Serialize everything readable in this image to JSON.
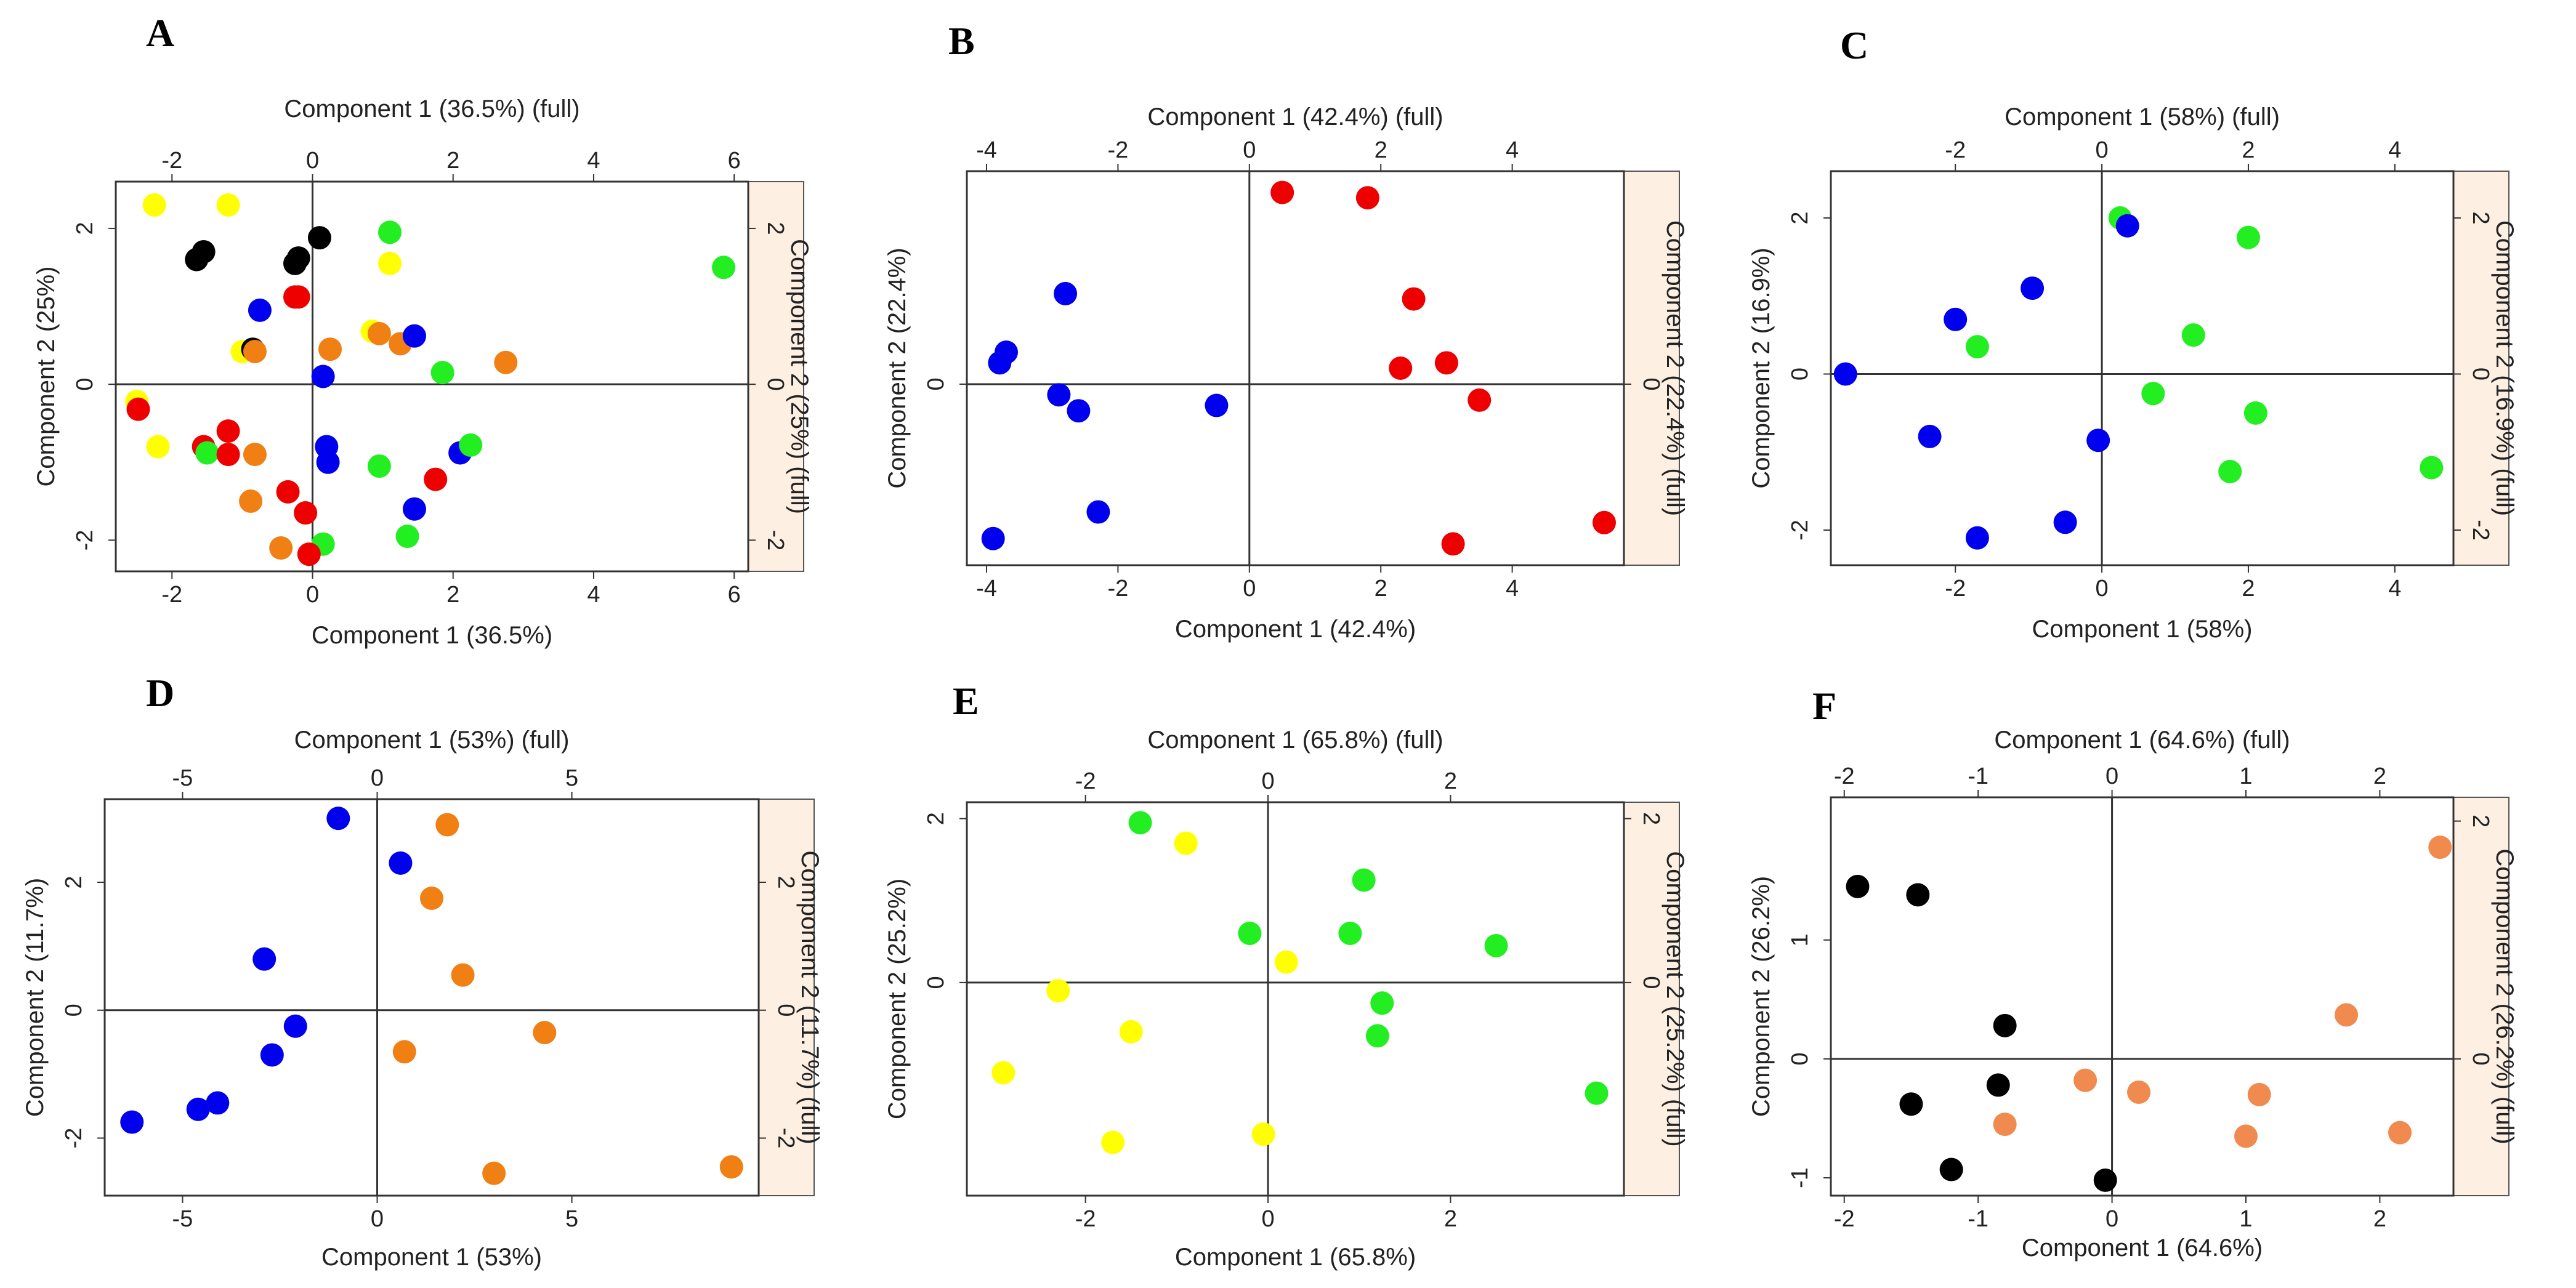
{
  "chart_data": [
    {
      "type": "scatter",
      "panel": "A",
      "xlabel": "Component 1 (36.5%)",
      "xlabel_top": "Component 1 (36.5%)   (full)",
      "ylabel": "Component 2 (25%)",
      "ylabel_right": "Component 2 (25%) (full)",
      "xlim": [
        -2.8,
        6.2
      ],
      "ylim": [
        -2.4,
        2.6
      ],
      "x_ticks": [
        -2,
        0,
        2,
        4,
        6
      ],
      "y_ticks": [
        -2,
        0,
        2
      ],
      "points": [
        {
          "x": -2.25,
          "y": 2.3,
          "color": "yellow"
        },
        {
          "x": -1.2,
          "y": 2.3,
          "color": "yellow"
        },
        {
          "x": -1.65,
          "y": 1.6,
          "color": "black"
        },
        {
          "x": -1.55,
          "y": 1.7,
          "color": "black"
        },
        {
          "x": -0.25,
          "y": 1.55,
          "color": "black"
        },
        {
          "x": -0.2,
          "y": 1.62,
          "color": "black"
        },
        {
          "x": 0.1,
          "y": 1.88,
          "color": "black"
        },
        {
          "x": 1.1,
          "y": 1.95,
          "color": "green"
        },
        {
          "x": 1.1,
          "y": 1.55,
          "color": "yellow"
        },
        {
          "x": 5.85,
          "y": 1.5,
          "color": "green"
        },
        {
          "x": -0.75,
          "y": 0.95,
          "color": "blue"
        },
        {
          "x": -0.25,
          "y": 1.12,
          "color": "red"
        },
        {
          "x": -0.2,
          "y": 1.12,
          "color": "red"
        },
        {
          "x": -1.0,
          "y": 0.42,
          "color": "yellow"
        },
        {
          "x": -0.85,
          "y": 0.45,
          "color": "black"
        },
        {
          "x": -0.82,
          "y": 0.42,
          "color": "orange"
        },
        {
          "x": 0.25,
          "y": 0.45,
          "color": "orange"
        },
        {
          "x": 0.85,
          "y": 0.68,
          "color": "yellow"
        },
        {
          "x": 0.95,
          "y": 0.65,
          "color": "orange"
        },
        {
          "x": 1.25,
          "y": 0.52,
          "color": "orange"
        },
        {
          "x": 1.45,
          "y": 0.62,
          "color": "blue"
        },
        {
          "x": 1.85,
          "y": 0.15,
          "color": "green"
        },
        {
          "x": 2.75,
          "y": 0.28,
          "color": "orange"
        },
        {
          "x": 0.15,
          "y": 0.1,
          "color": "blue"
        },
        {
          "x": -2.5,
          "y": -0.22,
          "color": "yellow"
        },
        {
          "x": -2.48,
          "y": -0.32,
          "color": "red"
        },
        {
          "x": -2.2,
          "y": -0.8,
          "color": "yellow"
        },
        {
          "x": -1.55,
          "y": -0.8,
          "color": "red"
        },
        {
          "x": -1.5,
          "y": -0.88,
          "color": "green"
        },
        {
          "x": -1.2,
          "y": -0.6,
          "color": "red"
        },
        {
          "x": -1.2,
          "y": -0.9,
          "color": "red"
        },
        {
          "x": -0.82,
          "y": -0.9,
          "color": "orange"
        },
        {
          "x": -0.88,
          "y": -1.5,
          "color": "orange"
        },
        {
          "x": -0.35,
          "y": -1.38,
          "color": "red"
        },
        {
          "x": -0.1,
          "y": -1.65,
          "color": "red"
        },
        {
          "x": 0.2,
          "y": -0.8,
          "color": "blue"
        },
        {
          "x": 0.22,
          "y": -1.0,
          "color": "blue"
        },
        {
          "x": 0.95,
          "y": -1.05,
          "color": "green"
        },
        {
          "x": 1.45,
          "y": -1.6,
          "color": "blue"
        },
        {
          "x": 1.75,
          "y": -1.22,
          "color": "red"
        },
        {
          "x": 2.1,
          "y": -0.88,
          "color": "blue"
        },
        {
          "x": 2.25,
          "y": -0.78,
          "color": "green"
        },
        {
          "x": 1.35,
          "y": -1.95,
          "color": "green"
        },
        {
          "x": -0.45,
          "y": -2.1,
          "color": "orange"
        },
        {
          "x": 0.15,
          "y": -2.05,
          "color": "green"
        },
        {
          "x": -0.05,
          "y": -2.18,
          "color": "red"
        }
      ]
    },
    {
      "type": "scatter",
      "panel": "B",
      "xlabel": "Component 1 (42.4%)",
      "xlabel_top": "Component 1 (42.4%) (full)",
      "ylabel": "Component 2 (22.4%)",
      "ylabel_right": "Component 2 (22.4%) (full)",
      "xlim": [
        -4.3,
        5.7
      ],
      "ylim": [
        -3.4,
        4.0
      ],
      "x_ticks": [
        -4,
        -2,
        0,
        2,
        4
      ],
      "y_ticks": [
        0
      ],
      "points": [
        {
          "x": 0.5,
          "y": 3.6,
          "color": "red"
        },
        {
          "x": 1.8,
          "y": 3.5,
          "color": "red"
        },
        {
          "x": 2.5,
          "y": 1.6,
          "color": "red"
        },
        {
          "x": 2.3,
          "y": 0.3,
          "color": "red"
        },
        {
          "x": 3.0,
          "y": 0.4,
          "color": "red"
        },
        {
          "x": 3.5,
          "y": -0.3,
          "color": "red"
        },
        {
          "x": 5.4,
          "y": -2.6,
          "color": "red"
        },
        {
          "x": 3.1,
          "y": -3.0,
          "color": "red"
        },
        {
          "x": -2.8,
          "y": 1.7,
          "color": "blue"
        },
        {
          "x": -3.7,
          "y": 0.6,
          "color": "blue"
        },
        {
          "x": -3.8,
          "y": 0.4,
          "color": "blue"
        },
        {
          "x": -2.9,
          "y": -0.2,
          "color": "blue"
        },
        {
          "x": -2.6,
          "y": -0.5,
          "color": "blue"
        },
        {
          "x": -0.5,
          "y": -0.4,
          "color": "blue"
        },
        {
          "x": -2.3,
          "y": -2.4,
          "color": "blue"
        },
        {
          "x": -3.9,
          "y": -2.9,
          "color": "blue"
        }
      ]
    },
    {
      "type": "scatter",
      "panel": "C",
      "xlabel": "Component 1 (58%)",
      "xlabel_top": "Component 1 (58%) (full)",
      "ylabel": "Component 2 (16.9%)",
      "ylabel_right": "Component 2 (16.9%) (full)",
      "xlim": [
        -3.7,
        4.8
      ],
      "ylim": [
        -2.45,
        2.6
      ],
      "x_ticks": [
        -2,
        0,
        2,
        4
      ],
      "y_ticks": [
        -2,
        0,
        2
      ],
      "points": [
        {
          "x": 0.25,
          "y": 2.0,
          "color": "green"
        },
        {
          "x": 0.35,
          "y": 1.9,
          "color": "blue"
        },
        {
          "x": 2.0,
          "y": 1.75,
          "color": "green"
        },
        {
          "x": -0.95,
          "y": 1.1,
          "color": "blue"
        },
        {
          "x": -2.0,
          "y": 0.7,
          "color": "blue"
        },
        {
          "x": -1.7,
          "y": 0.35,
          "color": "green"
        },
        {
          "x": 1.25,
          "y": 0.5,
          "color": "green"
        },
        {
          "x": -3.5,
          "y": 0.0,
          "color": "blue"
        },
        {
          "x": 0.7,
          "y": -0.25,
          "color": "green"
        },
        {
          "x": 2.1,
          "y": -0.5,
          "color": "green"
        },
        {
          "x": -2.35,
          "y": -0.8,
          "color": "blue"
        },
        {
          "x": -0.05,
          "y": -0.85,
          "color": "blue"
        },
        {
          "x": 1.75,
          "y": -1.25,
          "color": "green"
        },
        {
          "x": 4.5,
          "y": -1.2,
          "color": "green"
        },
        {
          "x": -0.5,
          "y": -1.9,
          "color": "blue"
        },
        {
          "x": -1.7,
          "y": -2.1,
          "color": "blue"
        }
      ]
    },
    {
      "type": "scatter",
      "panel": "D",
      "xlabel": "Component 1 (53%)",
      "xlabel_top": "Component 1 (53%) (full)",
      "ylabel": "Component 2 (11.7%)",
      "ylabel_right": "Component 2 (11.7%) (full)",
      "xlim": [
        -7.0,
        9.8
      ],
      "ylim": [
        -2.9,
        3.3
      ],
      "x_ticks": [
        -5,
        0,
        5
      ],
      "y_ticks": [
        -2,
        0,
        2
      ],
      "points": [
        {
          "x": -1.0,
          "y": 3.0,
          "color": "blue"
        },
        {
          "x": 1.8,
          "y": 2.9,
          "color": "orange"
        },
        {
          "x": 0.6,
          "y": 2.3,
          "color": "blue"
        },
        {
          "x": 1.4,
          "y": 1.75,
          "color": "orange"
        },
        {
          "x": -2.9,
          "y": 0.8,
          "color": "blue"
        },
        {
          "x": 2.2,
          "y": 0.55,
          "color": "orange"
        },
        {
          "x": -2.1,
          "y": -0.25,
          "color": "blue"
        },
        {
          "x": 4.3,
          "y": -0.35,
          "color": "orange"
        },
        {
          "x": -2.7,
          "y": -0.7,
          "color": "blue"
        },
        {
          "x": 0.7,
          "y": -0.65,
          "color": "orange"
        },
        {
          "x": -4.1,
          "y": -1.45,
          "color": "blue"
        },
        {
          "x": -4.6,
          "y": -1.55,
          "color": "blue"
        },
        {
          "x": -6.3,
          "y": -1.75,
          "color": "blue"
        },
        {
          "x": 3.0,
          "y": -2.55,
          "color": "orange"
        },
        {
          "x": 9.1,
          "y": -2.45,
          "color": "orange"
        }
      ]
    },
    {
      "type": "scatter",
      "panel": "E",
      "xlabel": "Component 1 (65.8%)",
      "xlabel_top": "Component 1 (65.8%) (full)",
      "ylabel": "Component 2 (25.2%)",
      "ylabel_right": "Component 2 (25.2%) (full)",
      "xlim": [
        -3.3,
        3.9
      ],
      "ylim": [
        -2.6,
        2.2
      ],
      "x_ticks": [
        -2,
        0,
        2
      ],
      "y_ticks": [
        0,
        2
      ],
      "points": [
        {
          "x": -1.4,
          "y": 1.95,
          "color": "green"
        },
        {
          "x": -0.9,
          "y": 1.7,
          "color": "yellow"
        },
        {
          "x": 1.05,
          "y": 1.25,
          "color": "green"
        },
        {
          "x": -0.2,
          "y": 0.6,
          "color": "green"
        },
        {
          "x": 0.9,
          "y": 0.6,
          "color": "green"
        },
        {
          "x": 2.5,
          "y": 0.45,
          "color": "green"
        },
        {
          "x": 0.2,
          "y": 0.25,
          "color": "yellow"
        },
        {
          "x": -2.3,
          "y": -0.1,
          "color": "yellow"
        },
        {
          "x": 1.25,
          "y": -0.25,
          "color": "green"
        },
        {
          "x": -1.5,
          "y": -0.6,
          "color": "yellow"
        },
        {
          "x": 1.2,
          "y": -0.65,
          "color": "green"
        },
        {
          "x": -2.9,
          "y": -1.1,
          "color": "yellow"
        },
        {
          "x": 3.6,
          "y": -1.35,
          "color": "green"
        },
        {
          "x": -1.7,
          "y": -1.95,
          "color": "yellow"
        },
        {
          "x": -0.05,
          "y": -1.85,
          "color": "yellow"
        }
      ]
    },
    {
      "type": "scatter",
      "panel": "F",
      "xlabel": "Component 1 (64.6%)",
      "xlabel_top": "Component 1 (64.6%) (full)",
      "ylabel": "Component 2 (26.2%)",
      "ylabel_right": "Component 2 (26.2%) (full)",
      "xlim": [
        -2.1,
        2.55
      ],
      "ylim": [
        -1.15,
        2.2
      ],
      "x_ticks": [
        -2,
        -1,
        0,
        1,
        2
      ],
      "y_ticks_left": [
        -1,
        0,
        1
      ],
      "y_ticks_right": [
        0,
        2
      ],
      "points": [
        {
          "x": -1.9,
          "y": 1.45,
          "color": "black"
        },
        {
          "x": -1.45,
          "y": 1.38,
          "color": "black"
        },
        {
          "x": 2.45,
          "y": 1.78,
          "color": "salmon"
        },
        {
          "x": -0.8,
          "y": 0.28,
          "color": "black"
        },
        {
          "x": 1.75,
          "y": 0.37,
          "color": "salmon"
        },
        {
          "x": -0.85,
          "y": -0.22,
          "color": "black"
        },
        {
          "x": -0.2,
          "y": -0.18,
          "color": "salmon"
        },
        {
          "x": 0.2,
          "y": -0.28,
          "color": "salmon"
        },
        {
          "x": 1.1,
          "y": -0.3,
          "color": "salmon"
        },
        {
          "x": -1.5,
          "y": -0.38,
          "color": "black"
        },
        {
          "x": -0.8,
          "y": -0.55,
          "color": "salmon"
        },
        {
          "x": 1.0,
          "y": -0.65,
          "color": "salmon"
        },
        {
          "x": 2.15,
          "y": -0.62,
          "color": "salmon"
        },
        {
          "x": -1.2,
          "y": -0.93,
          "color": "black"
        },
        {
          "x": -0.05,
          "y": -1.02,
          "color": "black"
        }
      ]
    }
  ],
  "colors": {
    "red": "#ee0000",
    "blue": "#0000ee",
    "green": "#22ee22",
    "yellow": "#ffff00",
    "black": "#000000",
    "orange": "#f07f14",
    "salmon": "#f08a4e",
    "side_strip": "#fdefe2"
  }
}
